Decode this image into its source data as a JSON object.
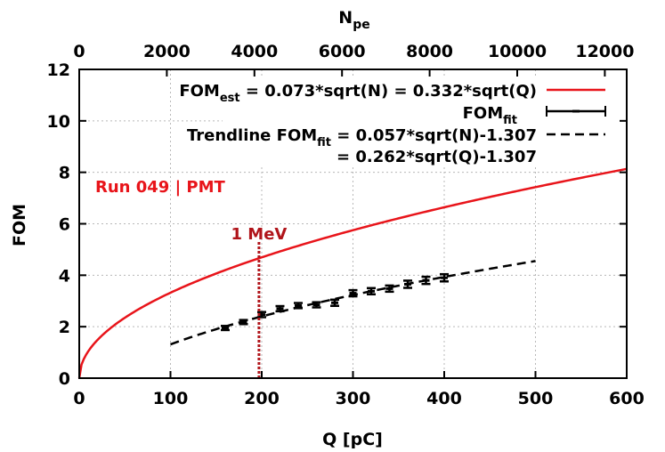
{
  "chart_data": {
    "type": "line",
    "title": "",
    "xlabel": "Q [pC]",
    "ylabel": "FOM",
    "x2label": {
      "base": "N",
      "sub": "pe"
    },
    "xlim": [
      0,
      600
    ],
    "ylim": [
      0,
      12
    ],
    "x2lim": [
      0,
      12500
    ],
    "x_ticks": [
      "0",
      "100",
      "200",
      "300",
      "400",
      "500",
      "600"
    ],
    "y_ticks": [
      "0",
      "2",
      "4",
      "6",
      "8",
      "10",
      "12"
    ],
    "x2_ticks": [
      "0",
      "2000",
      "4000",
      "6000",
      "8000",
      "10000",
      "12000"
    ],
    "grid": true,
    "legend_position": "top-right",
    "legend": {
      "est": {
        "base": "FOM",
        "sub": "est",
        "rest": " = 0.073*sqrt(N) = 0.332*sqrt(Q)"
      },
      "fit": {
        "base": "FOM",
        "sub": "fit"
      },
      "trend_line1": {
        "pre": "Trendline FOM",
        "sub": "fit",
        "rest": " = 0.057*sqrt(N)-1.307"
      },
      "trend_line2": "= 0.262*sqrt(Q)-1.307"
    },
    "annotations": {
      "run_label": "Run 049 | PMT",
      "energy_label": "1 MeV",
      "energy_x": 197
    },
    "series": [
      {
        "key": "est",
        "style": "solid",
        "color": "#e8141a",
        "formula": "0.332*sqrt(Q)",
        "coefficient": 0.332,
        "offset": 0,
        "x_range": [
          0,
          600
        ]
      },
      {
        "key": "fit",
        "style": "errorbars",
        "color": "#000000",
        "points": [
          {
            "x": 160,
            "y": 1.95,
            "err": 0.08
          },
          {
            "x": 180,
            "y": 2.18,
            "err": 0.08
          },
          {
            "x": 200,
            "y": 2.47,
            "err": 0.1
          },
          {
            "x": 220,
            "y": 2.7,
            "err": 0.1
          },
          {
            "x": 240,
            "y": 2.82,
            "err": 0.1
          },
          {
            "x": 260,
            "y": 2.85,
            "err": 0.1
          },
          {
            "x": 280,
            "y": 2.93,
            "err": 0.12
          },
          {
            "x": 300,
            "y": 3.3,
            "err": 0.12
          },
          {
            "x": 320,
            "y": 3.38,
            "err": 0.12
          },
          {
            "x": 340,
            "y": 3.48,
            "err": 0.12
          },
          {
            "x": 360,
            "y": 3.65,
            "err": 0.14
          },
          {
            "x": 380,
            "y": 3.8,
            "err": 0.14
          },
          {
            "x": 400,
            "y": 3.9,
            "err": 0.14
          }
        ]
      },
      {
        "key": "trend",
        "style": "dashed",
        "color": "#000000",
        "formula": "0.262*sqrt(Q)-1.307",
        "coefficient": 0.262,
        "offset": -1.307,
        "x_range": [
          100,
          500
        ]
      }
    ],
    "colors": {
      "red": "#e8141a",
      "dark_red": "#b0141a",
      "grid": "#b8b8b8",
      "axis": "#000000"
    }
  }
}
